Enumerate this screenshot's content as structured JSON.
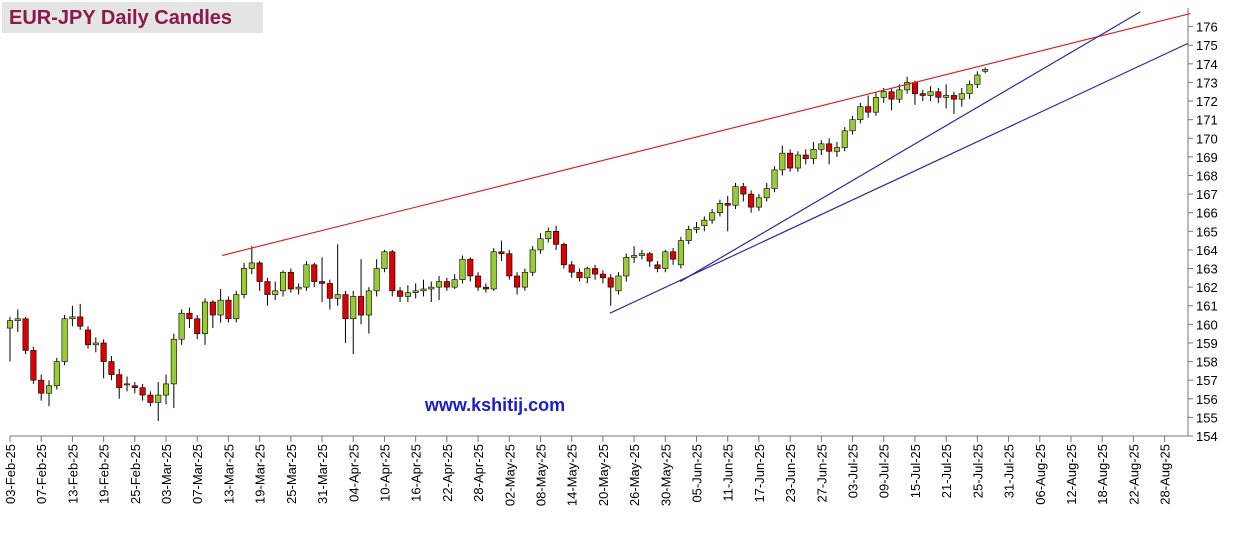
{
  "chart_data": {
    "type": "candlestick",
    "title": "EUR-JPY Daily  Candles",
    "watermark": "www.kshitij.com",
    "categories": [
      "03-Feb-25",
      null,
      null,
      null,
      "07-Feb-25",
      null,
      null,
      null,
      "13-Feb-25",
      null,
      null,
      null,
      "19-Feb-25",
      null,
      null,
      null,
      "25-Feb-25",
      null,
      null,
      null,
      "03-Mar-25",
      null,
      null,
      null,
      "07-Mar-25",
      null,
      null,
      null,
      "13-Mar-25",
      null,
      null,
      null,
      "19-Mar-25",
      null,
      null,
      null,
      "25-Mar-25",
      null,
      null,
      null,
      "31-Mar-25",
      null,
      null,
      null,
      "04-Apr-25",
      null,
      null,
      null,
      "10-Apr-25",
      null,
      null,
      null,
      "16-Apr-25",
      null,
      null,
      null,
      "22-Apr-25",
      null,
      null,
      null,
      "28-Apr-25",
      null,
      null,
      null,
      "02-May-25",
      null,
      null,
      null,
      "08-May-25",
      null,
      null,
      null,
      "14-May-25",
      null,
      null,
      null,
      "20-May-25",
      null,
      null,
      null,
      "26-May-25",
      null,
      null,
      null,
      "30-May-25",
      null,
      null,
      null,
      "05-Jun-25",
      null,
      null,
      null,
      "11-Jun-25",
      null,
      null,
      null,
      "17-Jun-25",
      null,
      null,
      null,
      "23-Jun-25",
      null,
      null,
      null,
      "27-Jun-25",
      null,
      null,
      null,
      "03-Jul-25",
      null,
      null,
      null,
      "09-Jul-25",
      null,
      null,
      null,
      "15-Jul-25",
      null,
      null,
      null,
      "21-Jul-25",
      null,
      null,
      null,
      "25-Jul-25",
      null,
      null,
      null,
      "31-Jul-25",
      null,
      null,
      null,
      "06-Aug-25",
      null,
      null,
      null,
      "12-Aug-25",
      null,
      null,
      null,
      "18-Aug-25",
      null,
      null,
      null,
      "22-Aug-25",
      null,
      null,
      null,
      "28-Aug-25",
      null,
      null,
      null
    ],
    "open": [
      159.8,
      160.2,
      160.3,
      158.6,
      157.0,
      156.3,
      156.7,
      158.0,
      160.3,
      160.4,
      159.7,
      158.9,
      159.0,
      158.0,
      157.3,
      156.8,
      156.7,
      156.6,
      156.2,
      155.8,
      156.2,
      156.8,
      159.2,
      160.6,
      160.3,
      159.5,
      161.2,
      160.5,
      161.3,
      160.3,
      161.6,
      163.0,
      163.3,
      162.3,
      161.6,
      161.8,
      162.8,
      161.9,
      162.0,
      163.2,
      162.3,
      162.2,
      161.4,
      161.6,
      160.3,
      161.5,
      160.5,
      161.8,
      163.0,
      163.9,
      161.8,
      161.5,
      161.7,
      161.8,
      161.9,
      162.0,
      162.3,
      162.0,
      162.4,
      163.5,
      162.6,
      162.0,
      161.9,
      163.9,
      163.8,
      162.6,
      162.0,
      162.8,
      164.0,
      164.6,
      165.0,
      164.3,
      163.2,
      162.8,
      162.5,
      163.0,
      162.7,
      162.5,
      161.8,
      162.6,
      163.6,
      163.7,
      163.8,
      163.2,
      163.0,
      163.9,
      163.2,
      164.5,
      165.1,
      165.3,
      165.6,
      166.0,
      166.5,
      166.4,
      167.4,
      167.0,
      166.3,
      166.8,
      167.3,
      168.3,
      169.2,
      168.4,
      169.1,
      168.9,
      169.4,
      169.7,
      169.3,
      169.5,
      170.4,
      171.0,
      171.7,
      171.4,
      172.2,
      172.5,
      172.1,
      172.6,
      173.0,
      172.4,
      172.3,
      172.5,
      172.2,
      172.3,
      172.1,
      172.4,
      172.9,
      173.6,
      null,
      null,
      null,
      null,
      null,
      null,
      null,
      null,
      null,
      null,
      null,
      null,
      null,
      null,
      null,
      null,
      null,
      null,
      null,
      null,
      null,
      null,
      null,
      null,
      null,
      null
    ],
    "high": [
      160.4,
      160.8,
      160.4,
      158.8,
      157.3,
      157.0,
      158.2,
      160.5,
      161.0,
      161.1,
      159.9,
      159.3,
      159.2,
      158.3,
      157.6,
      157.2,
      156.9,
      156.8,
      156.4,
      156.9,
      157.3,
      159.5,
      160.8,
      160.9,
      160.5,
      161.4,
      161.3,
      161.9,
      161.5,
      161.8,
      163.3,
      164.2,
      163.4,
      162.5,
      162.3,
      162.9,
      163.0,
      162.2,
      163.4,
      163.3,
      163.6,
      162.4,
      164.3,
      161.8,
      161.8,
      163.5,
      162.0,
      163.5,
      164.0,
      164.0,
      162.0,
      162.1,
      162.2,
      162.4,
      162.3,
      162.6,
      162.5,
      162.7,
      163.7,
      163.6,
      162.8,
      162.2,
      164.1,
      164.5,
      164.0,
      162.8,
      163.0,
      164.2,
      164.9,
      165.2,
      165.3,
      164.4,
      163.4,
      163.0,
      163.1,
      163.2,
      162.9,
      162.7,
      162.8,
      163.8,
      164.2,
      164.0,
      163.9,
      163.4,
      164.0,
      164.1,
      164.7,
      165.3,
      165.5,
      165.8,
      166.2,
      166.7,
      166.9,
      167.6,
      167.6,
      167.2,
      167.0,
      167.6,
      168.5,
      169.6,
      169.4,
      169.3,
      169.4,
      169.8,
      169.9,
      170.0,
      169.8,
      170.6,
      171.2,
      171.9,
      172.3,
      172.5,
      172.7,
      172.7,
      172.9,
      173.3,
      173.1,
      172.6,
      172.8,
      172.7,
      172.9,
      172.5,
      172.7,
      173.1,
      173.6,
      173.8,
      null,
      null,
      null,
      null,
      null,
      null,
      null,
      null,
      null,
      null,
      null,
      null,
      null,
      null,
      null,
      null,
      null,
      null,
      null,
      null,
      null,
      null,
      null,
      null,
      null,
      null
    ],
    "low": [
      158.0,
      159.6,
      158.4,
      156.8,
      155.9,
      155.6,
      156.5,
      157.8,
      159.9,
      159.7,
      158.7,
      158.5,
      157.1,
      157.0,
      156.0,
      156.4,
      156.3,
      155.9,
      155.6,
      154.8,
      155.7,
      155.5,
      158.9,
      159.8,
      159.2,
      158.9,
      159.8,
      160.1,
      160.1,
      160.1,
      161.4,
      162.7,
      161.8,
      161.0,
      161.3,
      161.5,
      161.7,
      161.6,
      161.8,
      162.0,
      161.2,
      160.8,
      161.0,
      159.0,
      158.4,
      160.0,
      159.5,
      161.5,
      162.8,
      161.5,
      161.2,
      161.2,
      161.4,
      161.5,
      161.2,
      161.3,
      161.8,
      161.9,
      162.2,
      162.3,
      161.8,
      161.7,
      161.8,
      163.4,
      162.4,
      161.6,
      161.8,
      162.6,
      163.8,
      164.4,
      164.0,
      163.0,
      162.5,
      162.3,
      162.2,
      162.4,
      162.2,
      161.0,
      161.6,
      162.3,
      163.3,
      163.5,
      163.1,
      162.8,
      162.8,
      163.2,
      163.0,
      164.3,
      164.9,
      165.0,
      165.4,
      165.8,
      165.0,
      166.2,
      166.6,
      166.0,
      166.1,
      166.6,
      167.1,
      168.0,
      168.2,
      168.2,
      168.6,
      168.6,
      169.1,
      168.6,
      169.0,
      169.3,
      170.2,
      170.8,
      171.1,
      171.2,
      171.9,
      171.5,
      171.9,
      172.4,
      171.8,
      172.0,
      172.0,
      171.9,
      171.6,
      171.3,
      171.7,
      172.1,
      172.7,
      173.5,
      null,
      null,
      null,
      null,
      null,
      null,
      null,
      null,
      null,
      null,
      null,
      null,
      null,
      null,
      null,
      null,
      null,
      null,
      null,
      null,
      null,
      null,
      null,
      null,
      null,
      null
    ],
    "close": [
      160.2,
      160.3,
      158.6,
      157.0,
      156.3,
      156.7,
      158.0,
      160.3,
      160.4,
      159.9,
      158.9,
      159.0,
      158.0,
      157.3,
      156.6,
      156.8,
      156.6,
      156.2,
      155.8,
      156.2,
      156.8,
      159.2,
      160.6,
      160.3,
      159.5,
      161.2,
      160.5,
      161.3,
      160.3,
      161.6,
      163.0,
      163.3,
      162.3,
      161.6,
      161.8,
      162.8,
      161.9,
      162.0,
      163.2,
      162.3,
      162.2,
      161.4,
      161.6,
      160.3,
      161.5,
      160.5,
      161.8,
      163.0,
      163.9,
      161.8,
      161.5,
      161.7,
      161.8,
      161.9,
      162.0,
      162.3,
      162.0,
      162.4,
      163.5,
      162.6,
      162.0,
      161.9,
      163.9,
      163.8,
      162.6,
      162.0,
      162.8,
      164.0,
      164.6,
      165.0,
      164.3,
      163.2,
      162.8,
      162.5,
      163.0,
      162.7,
      162.5,
      162.0,
      162.6,
      163.6,
      163.7,
      163.8,
      163.4,
      163.0,
      163.9,
      163.5,
      164.5,
      165.1,
      165.2,
      165.6,
      166.0,
      166.5,
      166.4,
      167.4,
      167.0,
      166.3,
      166.8,
      167.3,
      168.3,
      169.2,
      168.4,
      169.1,
      168.9,
      169.4,
      169.7,
      169.3,
      169.5,
      170.4,
      171.0,
      171.7,
      171.4,
      172.2,
      172.5,
      172.1,
      172.6,
      173.0,
      172.4,
      172.3,
      172.5,
      172.2,
      172.3,
      172.1,
      172.4,
      172.9,
      173.4,
      173.7,
      null,
      null,
      null,
      null,
      null,
      null,
      null,
      null,
      null,
      null,
      null,
      null,
      null,
      null,
      null,
      null,
      null,
      null,
      null,
      null,
      null,
      null,
      null,
      null,
      null,
      null
    ],
    "up_color": "#99cc33",
    "down_color": "#dd0000",
    "trendlines": [
      {
        "color": "#d42a2a",
        "x": [
          27.2,
          151.3
        ],
        "y": [
          163.7,
          176.7
        ]
      },
      {
        "color": "#2a2a9a",
        "x": [
          85.9,
          144.9
        ],
        "y": [
          162.3,
          176.8
        ]
      },
      {
        "color": "#2a2a9a",
        "x": [
          76.9,
          151.0
        ],
        "y": [
          160.6,
          175.1
        ]
      }
    ],
    "ylim": [
      154,
      177
    ],
    "yticks": [
      154,
      155,
      156,
      157,
      158,
      159,
      160,
      161,
      162,
      163,
      164,
      165,
      166,
      167,
      168,
      169,
      170,
      171,
      172,
      173,
      174,
      175,
      176
    ],
    "grid": false
  }
}
